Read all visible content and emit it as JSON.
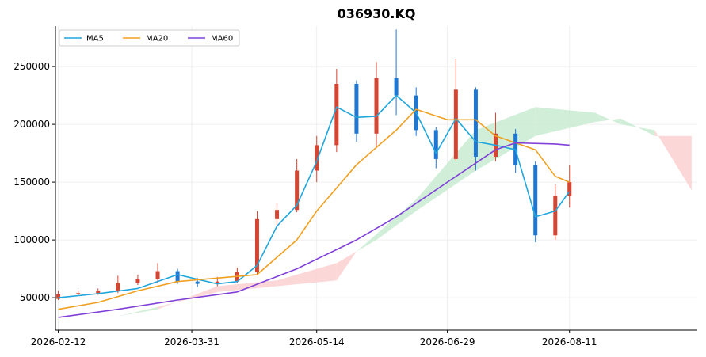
{
  "chart_data": {
    "type": "candlestick",
    "title": "036930.KQ",
    "xlabel": "",
    "ylabel": "",
    "x_range": [
      "2026-02-11",
      "2026-09-25"
    ],
    "ylim": [
      22000,
      285000
    ],
    "grid": true,
    "legend_placement": "top-left",
    "y_ticks": [
      50000,
      100000,
      150000,
      200000,
      250000
    ],
    "y_tick_labels": [
      "50000",
      "100000",
      "150000",
      "200000",
      "250000"
    ],
    "x_ticks": [
      "2026-02-12",
      "2026-03-31",
      "2026-05-14",
      "2026-06-29",
      "2026-08-11"
    ],
    "x_tick_labels": [
      "2026-02-12",
      "2026-03-31",
      "2026-05-14",
      "2026-06-29",
      "2026-08-11"
    ],
    "colors": {
      "up": "#d64532",
      "down": "#1f77d4",
      "ma5": "#1fa6dd",
      "ma20": "#f0a020",
      "ma60": "#8040d8",
      "cloud_bull": "#c9ebd2",
      "cloud_bear": "#fbd0d0",
      "grid": "#ebebeb"
    },
    "legend": [
      {
        "name": "MA5",
        "color": "#1fa6dd"
      },
      {
        "name": "MA20",
        "color": "#f0a020"
      },
      {
        "name": "MA60",
        "color": "#8040d8"
      }
    ],
    "candles_weekly": [
      {
        "date": "2026-02-12",
        "open": 49000,
        "high": 56000,
        "low": 48000,
        "close": 53000
      },
      {
        "date": "2026-02-19",
        "open": 53000,
        "high": 56000,
        "low": 51500,
        "close": 54000
      },
      {
        "date": "2026-02-26",
        "open": 54000,
        "high": 58000,
        "low": 52500,
        "close": 56000
      },
      {
        "date": "2026-03-05",
        "open": 56000,
        "high": 69000,
        "low": 54000,
        "close": 63000
      },
      {
        "date": "2026-03-12",
        "open": 63000,
        "high": 70000,
        "low": 61000,
        "close": 66000
      },
      {
        "date": "2026-03-19",
        "open": 66000,
        "high": 80000,
        "low": 63000,
        "close": 73000
      },
      {
        "date": "2026-03-26",
        "open": 73000,
        "high": 75000,
        "low": 62000,
        "close": 64000
      },
      {
        "date": "2026-04-02",
        "open": 64000,
        "high": 67000,
        "low": 59000,
        "close": 62000
      },
      {
        "date": "2026-04-09",
        "open": 62000,
        "high": 68000,
        "low": 60000,
        "close": 64000
      },
      {
        "date": "2026-04-16",
        "open": 64000,
        "high": 76000,
        "low": 63000,
        "close": 72000
      },
      {
        "date": "2026-04-23",
        "open": 72000,
        "high": 125000,
        "low": 70000,
        "close": 118000
      },
      {
        "date": "2026-04-30",
        "open": 118000,
        "high": 132000,
        "low": 112000,
        "close": 126000
      },
      {
        "date": "2026-05-07",
        "open": 126000,
        "high": 170000,
        "low": 124000,
        "close": 160000
      },
      {
        "date": "2026-05-14",
        "open": 160000,
        "high": 190000,
        "low": 150000,
        "close": 182000
      },
      {
        "date": "2026-05-21",
        "open": 182000,
        "high": 248000,
        "low": 176000,
        "close": 235000
      },
      {
        "date": "2026-05-28",
        "open": 235000,
        "high": 238000,
        "low": 185000,
        "close": 192000
      },
      {
        "date": "2026-06-04",
        "open": 192000,
        "high": 254000,
        "low": 180000,
        "close": 240000
      },
      {
        "date": "2026-06-11",
        "open": 240000,
        "high": 282000,
        "low": 208000,
        "close": 225000
      },
      {
        "date": "2026-06-18",
        "open": 225000,
        "high": 232000,
        "low": 190000,
        "close": 195000
      },
      {
        "date": "2026-06-25",
        "open": 195000,
        "high": 198000,
        "low": 162000,
        "close": 170000
      },
      {
        "date": "2026-07-02",
        "open": 170000,
        "high": 257000,
        "low": 168000,
        "close": 230000
      },
      {
        "date": "2026-07-09",
        "open": 230000,
        "high": 232000,
        "low": 160000,
        "close": 172000
      },
      {
        "date": "2026-07-16",
        "open": 172000,
        "high": 210000,
        "low": 168000,
        "close": 192000
      },
      {
        "date": "2026-07-23",
        "open": 192000,
        "high": 196000,
        "low": 158000,
        "close": 165000
      },
      {
        "date": "2026-07-30",
        "open": 165000,
        "high": 168000,
        "low": 98000,
        "close": 104000
      },
      {
        "date": "2026-08-06",
        "open": 104000,
        "high": 148000,
        "low": 100000,
        "close": 138000
      },
      {
        "date": "2026-08-11",
        "open": 138000,
        "high": 165000,
        "low": 128000,
        "close": 150000
      }
    ],
    "series": [
      {
        "name": "MA5",
        "points": [
          [
            "2026-02-12",
            50000
          ],
          [
            "2026-02-26",
            53500
          ],
          [
            "2026-03-12",
            58000
          ],
          [
            "2026-03-26",
            70000
          ],
          [
            "2026-04-02",
            66000
          ],
          [
            "2026-04-09",
            62000
          ],
          [
            "2026-04-16",
            64000
          ],
          [
            "2026-04-23",
            78000
          ],
          [
            "2026-04-30",
            112000
          ],
          [
            "2026-05-07",
            130000
          ],
          [
            "2026-05-14",
            168000
          ],
          [
            "2026-05-21",
            215000
          ],
          [
            "2026-05-28",
            206000
          ],
          [
            "2026-06-04",
            207000
          ],
          [
            "2026-06-11",
            225000
          ],
          [
            "2026-06-18",
            210000
          ],
          [
            "2026-06-25",
            175000
          ],
          [
            "2026-07-02",
            205000
          ],
          [
            "2026-07-09",
            185000
          ],
          [
            "2026-07-16",
            182000
          ],
          [
            "2026-07-23",
            178000
          ],
          [
            "2026-07-30",
            120000
          ],
          [
            "2026-08-06",
            125000
          ],
          [
            "2026-08-11",
            142000
          ]
        ]
      },
      {
        "name": "MA20",
        "points": [
          [
            "2026-02-12",
            40000
          ],
          [
            "2026-02-26",
            46000
          ],
          [
            "2026-03-12",
            56000
          ],
          [
            "2026-03-26",
            64000
          ],
          [
            "2026-04-09",
            67000
          ],
          [
            "2026-04-23",
            70000
          ],
          [
            "2026-05-07",
            100000
          ],
          [
            "2026-05-14",
            125000
          ],
          [
            "2026-05-28",
            165000
          ],
          [
            "2026-06-11",
            195000
          ],
          [
            "2026-06-18",
            213000
          ],
          [
            "2026-06-29",
            204000
          ],
          [
            "2026-07-09",
            204000
          ],
          [
            "2026-07-16",
            190000
          ],
          [
            "2026-07-30",
            178000
          ],
          [
            "2026-08-06",
            155000
          ],
          [
            "2026-08-11",
            150000
          ]
        ]
      },
      {
        "name": "MA60",
        "points": [
          [
            "2026-02-12",
            33000
          ],
          [
            "2026-03-05",
            40000
          ],
          [
            "2026-03-26",
            48000
          ],
          [
            "2026-04-16",
            55000
          ],
          [
            "2026-05-07",
            75000
          ],
          [
            "2026-05-28",
            100000
          ],
          [
            "2026-06-11",
            120000
          ],
          [
            "2026-06-29",
            150000
          ],
          [
            "2026-07-16",
            178000
          ],
          [
            "2026-07-23",
            184000
          ],
          [
            "2026-08-06",
            183000
          ],
          [
            "2026-08-11",
            182000
          ]
        ]
      }
    ],
    "ichimoku_cloud": {
      "span_a": [
        [
          "2026-02-12",
          33000
        ],
        [
          "2026-03-05",
          34000
        ],
        [
          "2026-03-19",
          42000
        ],
        [
          "2026-04-09",
          55000
        ],
        [
          "2026-04-30",
          60000
        ],
        [
          "2026-05-21",
          65000
        ],
        [
          "2026-05-28",
          90000
        ],
        [
          "2026-06-18",
          135000
        ],
        [
          "2026-07-09",
          195000
        ],
        [
          "2026-07-30",
          215000
        ],
        [
          "2026-08-20",
          210000
        ],
        [
          "2026-08-29",
          200000
        ],
        [
          "2026-09-10",
          195000
        ],
        [
          "2026-09-23",
          143000
        ]
      ],
      "span_b": [
        [
          "2026-02-12",
          33000
        ],
        [
          "2026-03-05",
          34000
        ],
        [
          "2026-03-19",
          40000
        ],
        [
          "2026-04-09",
          60000
        ],
        [
          "2026-04-30",
          65000
        ],
        [
          "2026-05-21",
          80000
        ],
        [
          "2026-06-04",
          100000
        ],
        [
          "2026-06-18",
          125000
        ],
        [
          "2026-07-09",
          160000
        ],
        [
          "2026-07-30",
          190000
        ],
        [
          "2026-08-20",
          202000
        ],
        [
          "2026-08-29",
          205000
        ],
        [
          "2026-09-10",
          190000
        ],
        [
          "2026-09-23",
          190000
        ]
      ]
    }
  }
}
